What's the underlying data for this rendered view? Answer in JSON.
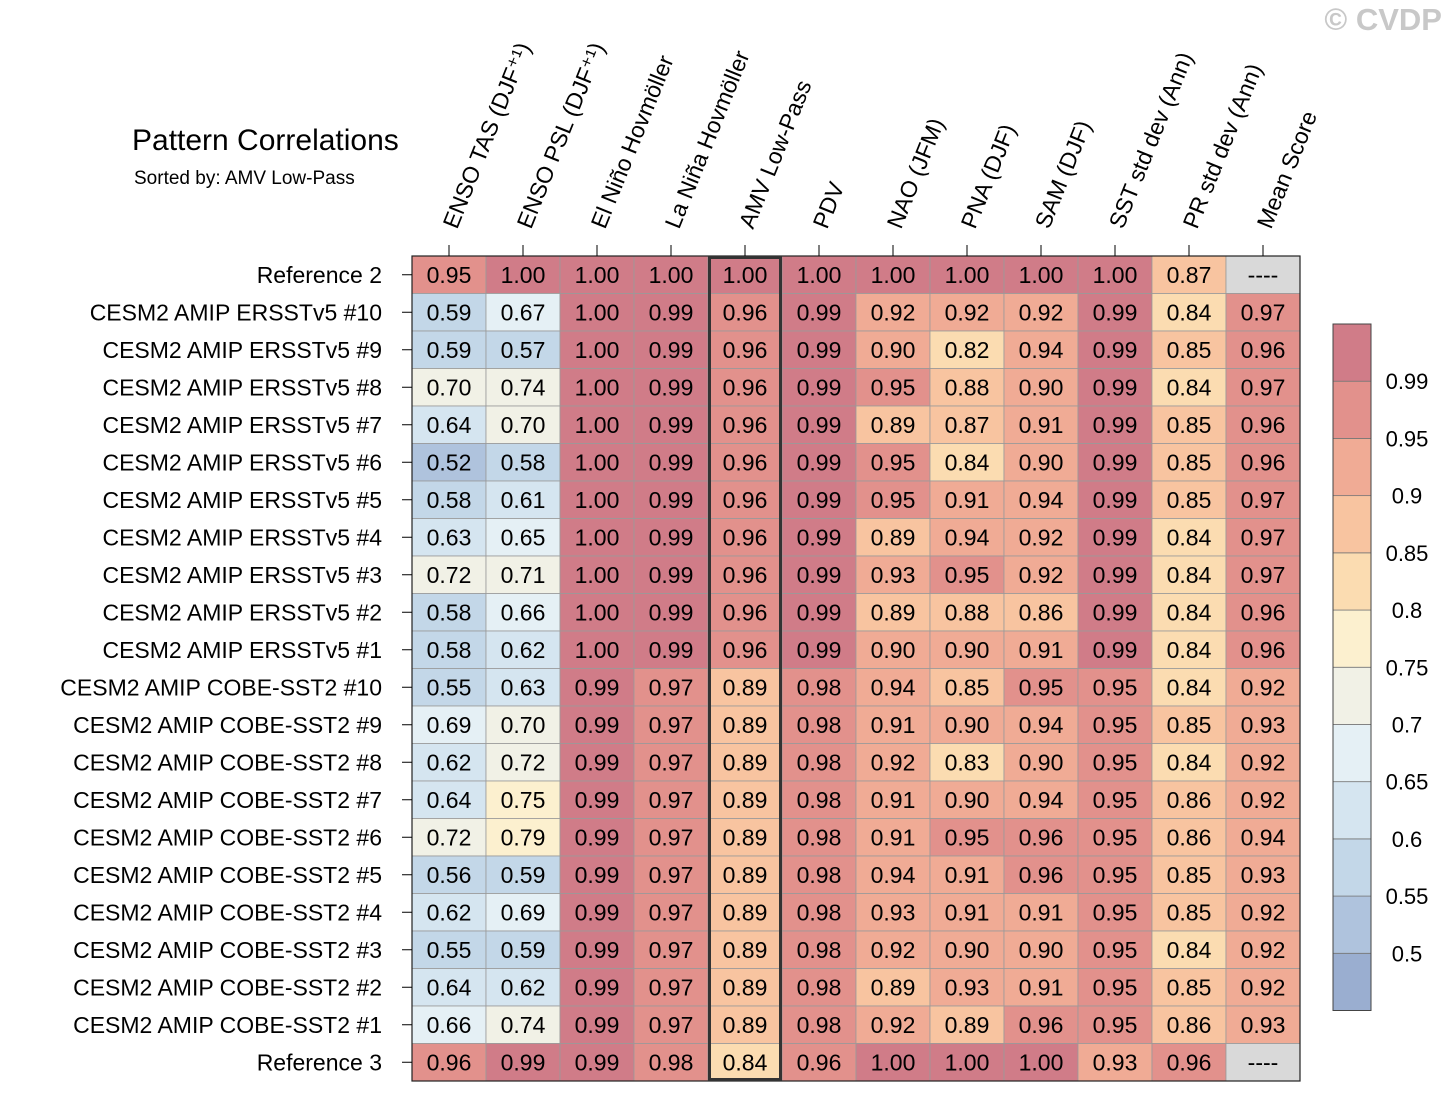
{
  "watermark": "© CVDP",
  "chart_data": {
    "type": "heatmap",
    "title": "Pattern Correlations",
    "subtitle": "Sorted by: AMV Low-Pass",
    "columns": [
      "ENSO TAS (DJF⁺¹)",
      "ENSO PSL (DJF⁺¹)",
      "El Niño Hovmöller",
      "La Niña Hovmöller",
      "AMV Low-Pass",
      "PDV",
      "NAO (JFM)",
      "PNA (DJF)",
      "SAM (DJF)",
      "SST std dev (Ann)",
      "PR std dev (Ann)",
      "Mean Score"
    ],
    "rows": [
      {
        "label": "Reference 2",
        "values": [
          "0.95",
          "1.00",
          "1.00",
          "1.00",
          "1.00",
          "1.00",
          "1.00",
          "1.00",
          "1.00",
          "1.00",
          "0.87",
          "----"
        ]
      },
      {
        "label": "CESM2 AMIP ERSSTv5 #10",
        "values": [
          "0.59",
          "0.67",
          "1.00",
          "0.99",
          "0.96",
          "0.99",
          "0.92",
          "0.92",
          "0.92",
          "0.99",
          "0.84",
          "0.97"
        ]
      },
      {
        "label": "CESM2 AMIP ERSSTv5 #9",
        "values": [
          "0.59",
          "0.57",
          "1.00",
          "0.99",
          "0.96",
          "0.99",
          "0.90",
          "0.82",
          "0.94",
          "0.99",
          "0.85",
          "0.96"
        ]
      },
      {
        "label": "CESM2 AMIP ERSSTv5 #8",
        "values": [
          "0.70",
          "0.74",
          "1.00",
          "0.99",
          "0.96",
          "0.99",
          "0.95",
          "0.88",
          "0.90",
          "0.99",
          "0.84",
          "0.97"
        ]
      },
      {
        "label": "CESM2 AMIP ERSSTv5 #7",
        "values": [
          "0.64",
          "0.70",
          "1.00",
          "0.99",
          "0.96",
          "0.99",
          "0.89",
          "0.87",
          "0.91",
          "0.99",
          "0.85",
          "0.96"
        ]
      },
      {
        "label": "CESM2 AMIP ERSSTv5 #6",
        "values": [
          "0.52",
          "0.58",
          "1.00",
          "0.99",
          "0.96",
          "0.99",
          "0.95",
          "0.84",
          "0.90",
          "0.99",
          "0.85",
          "0.96"
        ]
      },
      {
        "label": "CESM2 AMIP ERSSTv5 #5",
        "values": [
          "0.58",
          "0.61",
          "1.00",
          "0.99",
          "0.96",
          "0.99",
          "0.95",
          "0.91",
          "0.94",
          "0.99",
          "0.85",
          "0.97"
        ]
      },
      {
        "label": "CESM2 AMIP ERSSTv5 #4",
        "values": [
          "0.63",
          "0.65",
          "1.00",
          "0.99",
          "0.96",
          "0.99",
          "0.89",
          "0.94",
          "0.92",
          "0.99",
          "0.84",
          "0.97"
        ]
      },
      {
        "label": "CESM2 AMIP ERSSTv5 #3",
        "values": [
          "0.72",
          "0.71",
          "1.00",
          "0.99",
          "0.96",
          "0.99",
          "0.93",
          "0.95",
          "0.92",
          "0.99",
          "0.84",
          "0.97"
        ]
      },
      {
        "label": "CESM2 AMIP ERSSTv5 #2",
        "values": [
          "0.58",
          "0.66",
          "1.00",
          "0.99",
          "0.96",
          "0.99",
          "0.89",
          "0.88",
          "0.86",
          "0.99",
          "0.84",
          "0.96"
        ]
      },
      {
        "label": "CESM2 AMIP ERSSTv5 #1",
        "values": [
          "0.58",
          "0.62",
          "1.00",
          "0.99",
          "0.96",
          "0.99",
          "0.90",
          "0.90",
          "0.91",
          "0.99",
          "0.84",
          "0.96"
        ]
      },
      {
        "label": "CESM2 AMIP COBE-SST2 #10",
        "values": [
          "0.55",
          "0.63",
          "0.99",
          "0.97",
          "0.89",
          "0.98",
          "0.94",
          "0.85",
          "0.95",
          "0.95",
          "0.84",
          "0.92"
        ]
      },
      {
        "label": "CESM2 AMIP COBE-SST2 #9",
        "values": [
          "0.69",
          "0.70",
          "0.99",
          "0.97",
          "0.89",
          "0.98",
          "0.91",
          "0.90",
          "0.94",
          "0.95",
          "0.85",
          "0.93"
        ]
      },
      {
        "label": "CESM2 AMIP COBE-SST2 #8",
        "values": [
          "0.62",
          "0.72",
          "0.99",
          "0.97",
          "0.89",
          "0.98",
          "0.92",
          "0.83",
          "0.90",
          "0.95",
          "0.84",
          "0.92"
        ]
      },
      {
        "label": "CESM2 AMIP COBE-SST2 #7",
        "values": [
          "0.64",
          "0.75",
          "0.99",
          "0.97",
          "0.89",
          "0.98",
          "0.91",
          "0.90",
          "0.94",
          "0.95",
          "0.86",
          "0.92"
        ]
      },
      {
        "label": "CESM2 AMIP COBE-SST2 #6",
        "values": [
          "0.72",
          "0.79",
          "0.99",
          "0.97",
          "0.89",
          "0.98",
          "0.91",
          "0.95",
          "0.96",
          "0.95",
          "0.86",
          "0.94"
        ]
      },
      {
        "label": "CESM2 AMIP COBE-SST2 #5",
        "values": [
          "0.56",
          "0.59",
          "0.99",
          "0.97",
          "0.89",
          "0.98",
          "0.94",
          "0.91",
          "0.96",
          "0.95",
          "0.85",
          "0.93"
        ]
      },
      {
        "label": "CESM2 AMIP COBE-SST2 #4",
        "values": [
          "0.62",
          "0.69",
          "0.99",
          "0.97",
          "0.89",
          "0.98",
          "0.93",
          "0.91",
          "0.91",
          "0.95",
          "0.85",
          "0.92"
        ]
      },
      {
        "label": "CESM2 AMIP COBE-SST2 #3",
        "values": [
          "0.55",
          "0.59",
          "0.99",
          "0.97",
          "0.89",
          "0.98",
          "0.92",
          "0.90",
          "0.90",
          "0.95",
          "0.84",
          "0.92"
        ]
      },
      {
        "label": "CESM2 AMIP COBE-SST2 #2",
        "values": [
          "0.64",
          "0.62",
          "0.99",
          "0.97",
          "0.89",
          "0.98",
          "0.89",
          "0.93",
          "0.91",
          "0.95",
          "0.85",
          "0.92"
        ]
      },
      {
        "label": "CESM2 AMIP COBE-SST2 #1",
        "values": [
          "0.66",
          "0.74",
          "0.99",
          "0.97",
          "0.89",
          "0.98",
          "0.92",
          "0.89",
          "0.96",
          "0.95",
          "0.86",
          "0.93"
        ]
      },
      {
        "label": "Reference 3",
        "values": [
          "0.96",
          "0.99",
          "0.99",
          "0.98",
          "0.84",
          "0.96",
          "1.00",
          "1.00",
          "1.00",
          "0.93",
          "0.96",
          "----"
        ]
      }
    ],
    "highlight_column": "AMV Low-Pass",
    "missing_color": "#d9d9d9",
    "colorbar": {
      "levels": [
        0.5,
        0.55,
        0.6,
        0.65,
        0.7,
        0.75,
        0.8,
        0.85,
        0.9,
        0.95,
        0.99
      ],
      "tick_labels": [
        "0.5",
        "0.55",
        "0.6",
        "0.65",
        "0.7",
        "0.75",
        "0.8",
        "0.85",
        "0.9",
        "0.95",
        "0.99"
      ],
      "colors": [
        "#9aaed0",
        "#afc3dd",
        "#c3d7e8",
        "#d5e5f0",
        "#e5f0f5",
        "#f1f1e6",
        "#fcf0cf",
        "#fbdcb1",
        "#f8c4a0",
        "#f0ab95",
        "#e2918c",
        "#d07c88"
      ]
    }
  }
}
